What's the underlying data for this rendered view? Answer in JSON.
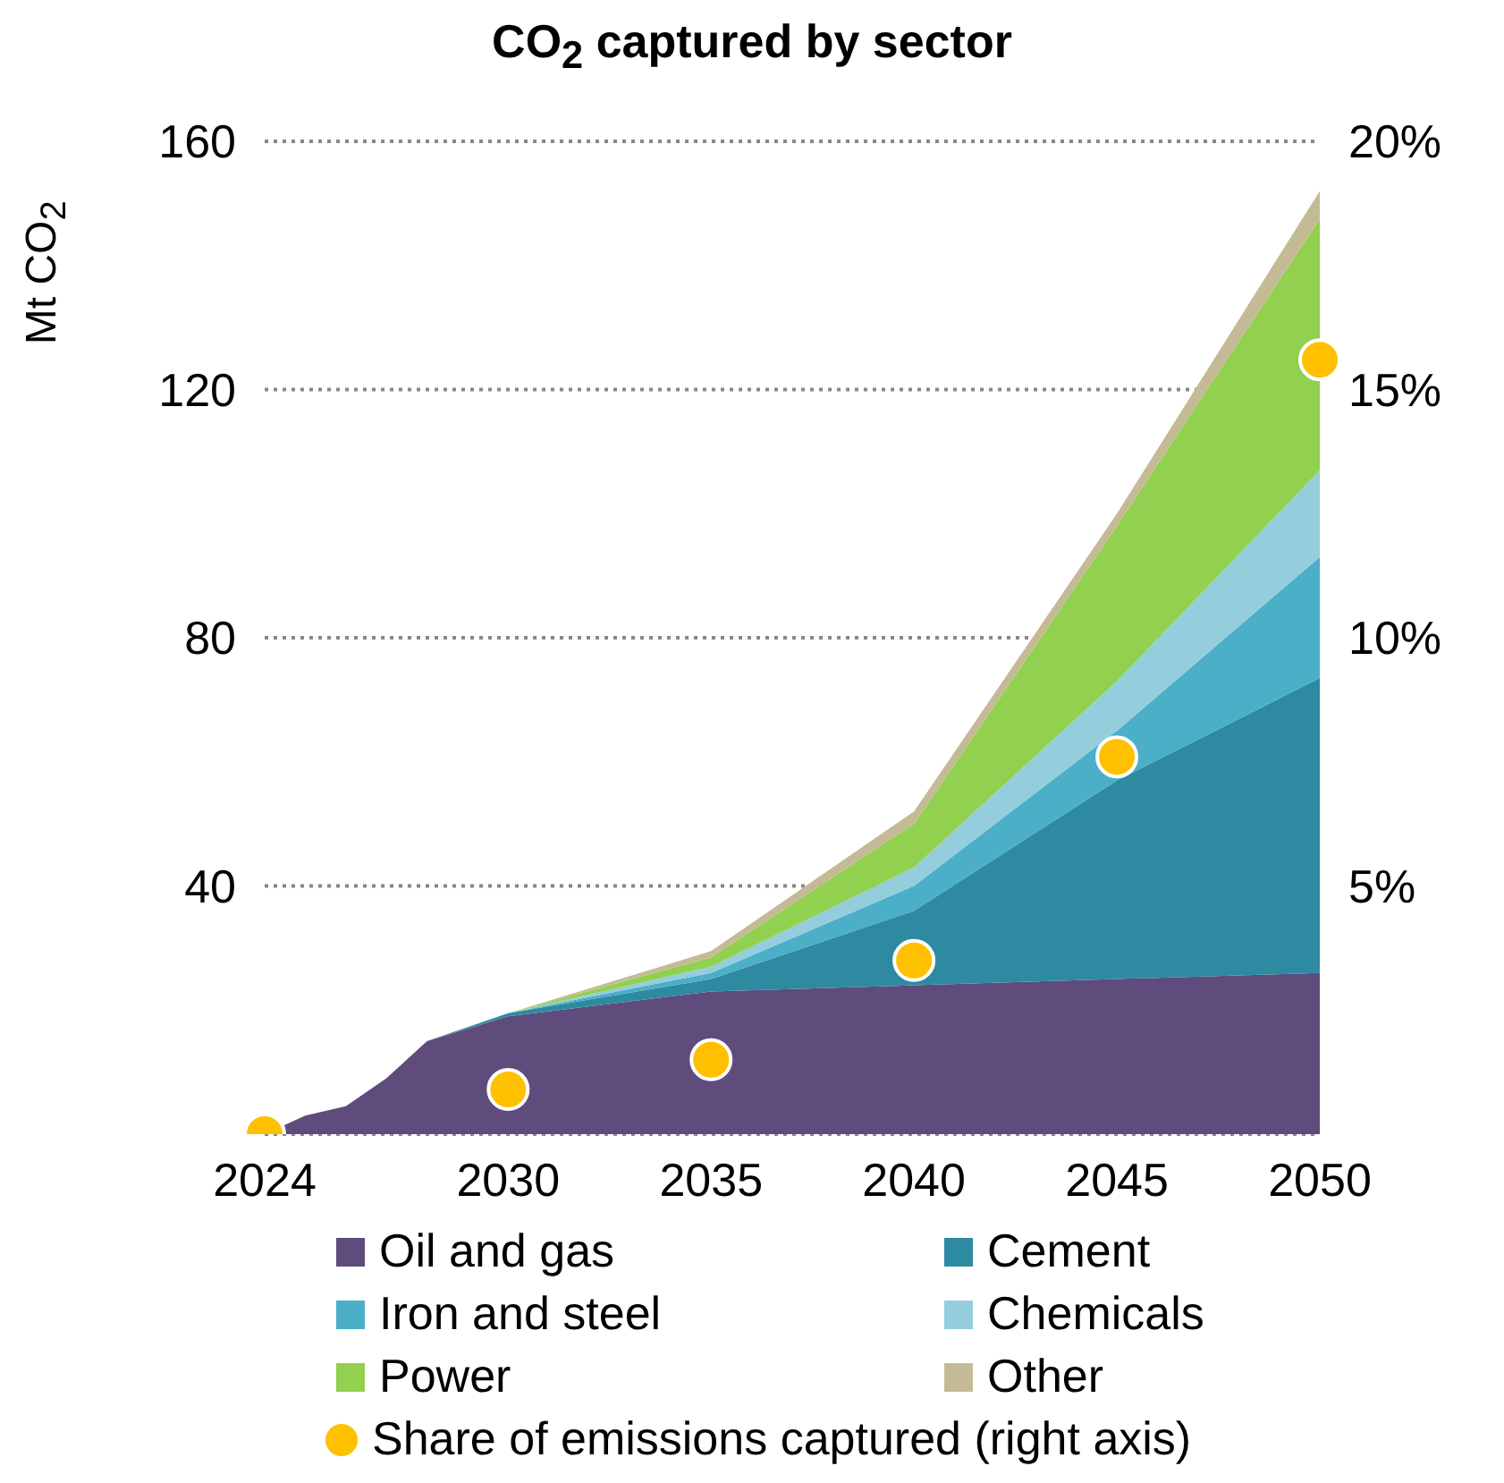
{
  "chart_data": {
    "type": "area",
    "title": "CO$_{2}$ captured by sector",
    "ylabel": "Mt CO$_{2}$",
    "stacked": true,
    "x": [
      2024,
      2025,
      2026,
      2027,
      2028,
      2030,
      2035,
      2040,
      2045,
      2050
    ],
    "series": [
      {
        "name": "Oil and gas",
        "color": "#5f4b7c",
        "values": [
          0,
          3,
          4.5,
          9,
          15,
          19,
          23,
          24,
          25,
          26
        ]
      },
      {
        "name": "Cement",
        "color": "#2e8aa0",
        "values": [
          0,
          0,
          0,
          0,
          0,
          0.5,
          2,
          12,
          32,
          47.5
        ]
      },
      {
        "name": "Iron and steel",
        "color": "#4aafc7",
        "values": [
          0,
          0,
          0,
          0,
          0,
          0,
          1,
          4,
          8,
          19.5
        ]
      },
      {
        "name": "Chemicals",
        "color": "#94cddc",
        "values": [
          0,
          0,
          0,
          0,
          0,
          0,
          1,
          3,
          8,
          14
        ]
      },
      {
        "name": "Power",
        "color": "#92d050",
        "values": [
          0,
          0,
          0,
          0,
          0,
          0,
          1.5,
          7,
          25,
          40.5
        ]
      },
      {
        "name": "Other",
        "color": "#c4bb96",
        "values": [
          0,
          0,
          0,
          0,
          0,
          0,
          1,
          2,
          2,
          4.5
        ]
      },
      {
        "name": "Share of emissions captured (right axis)",
        "type": "scatter",
        "axis": "y2",
        "marker": "circle",
        "color": "#ffc000",
        "x": [
          2024,
          2030,
          2035,
          2040,
          2045,
          2050
        ],
        "values": [
          0,
          0.9,
          1.5,
          3.5,
          7.6,
          15.6
        ]
      }
    ],
    "xlim": [
      2024,
      2050
    ],
    "xticks": [
      2024,
      2030,
      2035,
      2040,
      2045,
      2050
    ],
    "ylim": [
      0,
      160
    ],
    "yticks": [
      40,
      80,
      120,
      160
    ],
    "y2lim": [
      0,
      20
    ],
    "y2ticks": [
      {
        "value": 5,
        "label": "5%"
      },
      {
        "value": 10,
        "label": "10%"
      },
      {
        "value": 15,
        "label": "15%"
      },
      {
        "value": 20,
        "label": "20%"
      }
    ],
    "grid": "y",
    "legend": "bottom"
  }
}
